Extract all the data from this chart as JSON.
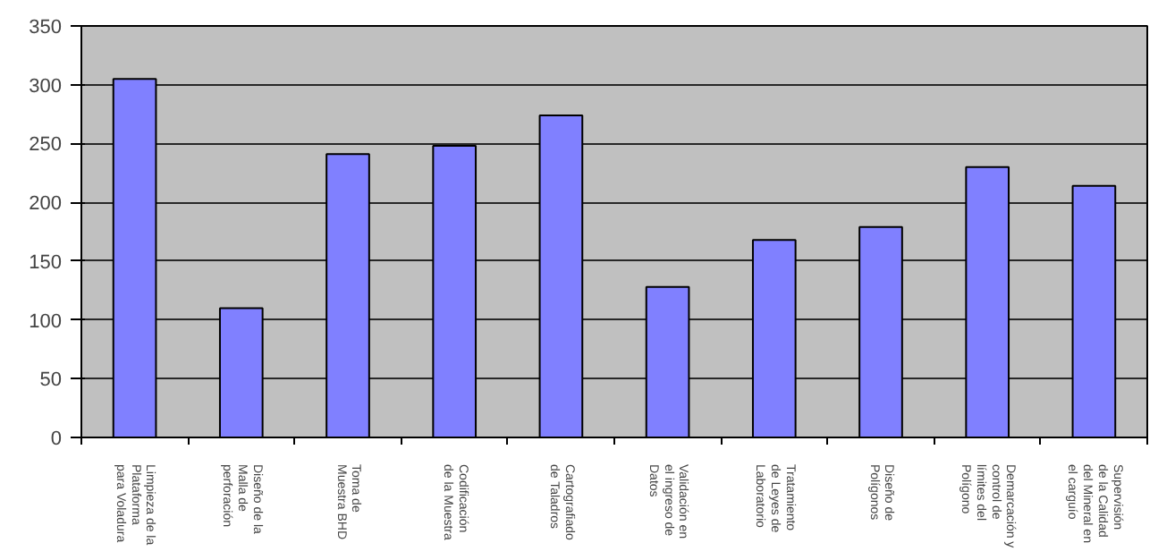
{
  "chart_data": {
    "type": "bar",
    "categories": [
      "Limpieza de la\nPlataforma\npara Voladura",
      "Diseño de la\nMalla de\nperforación",
      "Toma de\nMuestra BHD",
      "Codificación\nde la Muestra",
      "Cartografiado\nde Taladros",
      "Validación en\nel ingreso de\nDatos",
      "Tratamiento\nde Leyes de\nLaboratorio",
      "Diseño de\nPolígonos",
      "Demarcación y\ncontrol de\nlímites del\nPolígono",
      "Supervisión\nde la Calidad\ndel Mineral en\nel carguío"
    ],
    "values": [
      305,
      110,
      241,
      248,
      274,
      128,
      168,
      179,
      230,
      214
    ],
    "color": "#8080ff",
    "ylim": [
      0,
      350
    ],
    "yticks": [
      0,
      50,
      100,
      150,
      200,
      250,
      300,
      350
    ],
    "grid": "y"
  }
}
